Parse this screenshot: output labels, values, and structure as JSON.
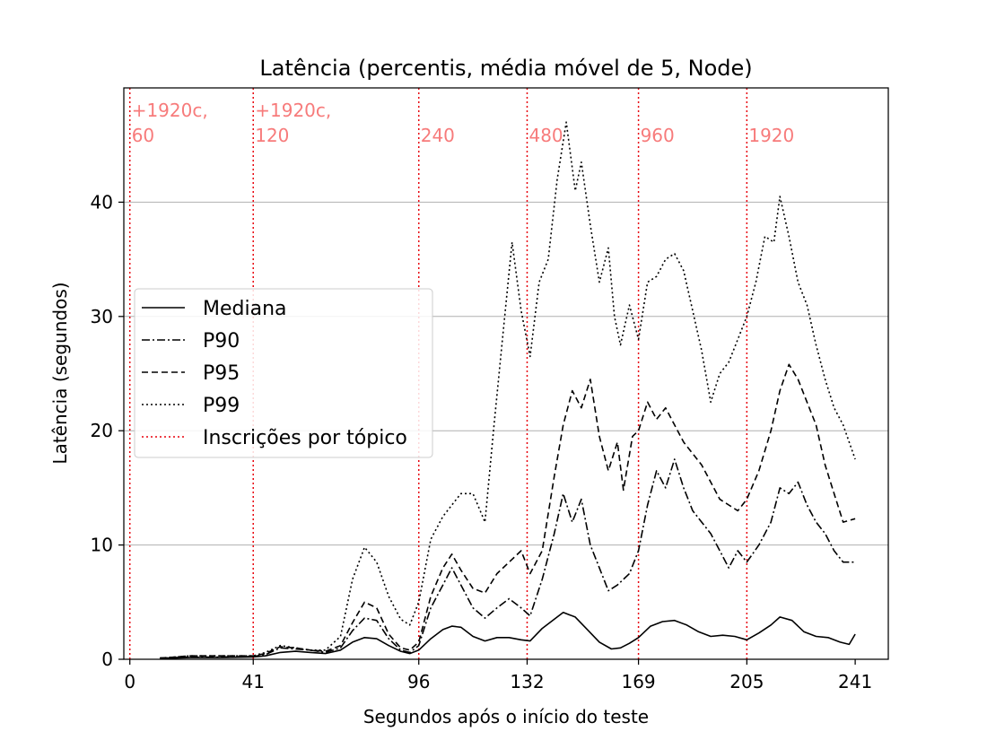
{
  "chart_data": {
    "type": "line",
    "title": "Latência (percentis, média móvel de 5, Node)",
    "xlabel": "Segundos após o início do teste",
    "ylabel": "Latência (segundos)",
    "xlim": [
      -2,
      252
    ],
    "ylim": [
      0,
      50
    ],
    "xticks": [
      0,
      41,
      96,
      132,
      169,
      205,
      241
    ],
    "yticks": [
      0,
      10,
      20,
      30,
      40
    ],
    "grid": "y",
    "legend_position": "center-left",
    "colors": {
      "series": "#000000",
      "markers": "#e8000b",
      "annotations": "#f77b7b",
      "grid": "#b0b0b0"
    },
    "legend": [
      "Mediana",
      "P90",
      "P95",
      "P99",
      "Inscrições por tópico"
    ],
    "markers": [
      {
        "x": 0,
        "label": "+1920c,\n60"
      },
      {
        "x": 41,
        "label": "+1920c,\n120"
      },
      {
        "x": 96,
        "label": "240"
      },
      {
        "x": 132,
        "label": "480"
      },
      {
        "x": 169,
        "label": "960"
      },
      {
        "x": 205,
        "label": "1920"
      }
    ],
    "series": [
      {
        "name": "Mediana",
        "dash": "solid",
        "points": [
          [
            10,
            0.1
          ],
          [
            15,
            0.1
          ],
          [
            20,
            0.15
          ],
          [
            30,
            0.15
          ],
          [
            41,
            0.2
          ],
          [
            45,
            0.3
          ],
          [
            50,
            0.6
          ],
          [
            55,
            0.7
          ],
          [
            60,
            0.6
          ],
          [
            65,
            0.5
          ],
          [
            70,
            0.8
          ],
          [
            74,
            1.5
          ],
          [
            78,
            1.9
          ],
          [
            82,
            1.8
          ],
          [
            86,
            1.2
          ],
          [
            90,
            0.7
          ],
          [
            93,
            0.5
          ],
          [
            96,
            0.8
          ],
          [
            100,
            1.8
          ],
          [
            104,
            2.6
          ],
          [
            107,
            2.9
          ],
          [
            110,
            2.8
          ],
          [
            114,
            2.0
          ],
          [
            118,
            1.6
          ],
          [
            122,
            1.9
          ],
          [
            126,
            1.9
          ],
          [
            130,
            1.7
          ],
          [
            133,
            1.6
          ],
          [
            137,
            2.7
          ],
          [
            141,
            3.5
          ],
          [
            144,
            4.1
          ],
          [
            148,
            3.7
          ],
          [
            152,
            2.6
          ],
          [
            156,
            1.5
          ],
          [
            160,
            0.9
          ],
          [
            163,
            1.0
          ],
          [
            166,
            1.4
          ],
          [
            169,
            1.9
          ],
          [
            173,
            2.9
          ],
          [
            177,
            3.3
          ],
          [
            181,
            3.4
          ],
          [
            185,
            3.0
          ],
          [
            189,
            2.4
          ],
          [
            193,
            2.0
          ],
          [
            197,
            2.1
          ],
          [
            201,
            2.0
          ],
          [
            205,
            1.7
          ],
          [
            209,
            2.3
          ],
          [
            213,
            3.0
          ],
          [
            216,
            3.7
          ],
          [
            220,
            3.4
          ],
          [
            224,
            2.4
          ],
          [
            228,
            2.0
          ],
          [
            232,
            1.9
          ],
          [
            236,
            1.5
          ],
          [
            239,
            1.3
          ],
          [
            241,
            2.2
          ]
        ]
      },
      {
        "name": "P90",
        "dash": "dashdot",
        "points": [
          [
            10,
            0.1
          ],
          [
            15,
            0.15
          ],
          [
            20,
            0.2
          ],
          [
            30,
            0.2
          ],
          [
            41,
            0.25
          ],
          [
            45,
            0.4
          ],
          [
            50,
            1.0
          ],
          [
            55,
            0.9
          ],
          [
            60,
            0.8
          ],
          [
            65,
            0.6
          ],
          [
            70,
            1.0
          ],
          [
            74,
            2.5
          ],
          [
            78,
            3.6
          ],
          [
            82,
            3.4
          ],
          [
            86,
            1.8
          ],
          [
            90,
            0.8
          ],
          [
            93,
            0.6
          ],
          [
            96,
            1.2
          ],
          [
            100,
            4.5
          ],
          [
            104,
            6.5
          ],
          [
            107,
            8.0
          ],
          [
            110,
            6.5
          ],
          [
            114,
            4.5
          ],
          [
            118,
            3.6
          ],
          [
            122,
            4.5
          ],
          [
            126,
            5.3
          ],
          [
            130,
            4.5
          ],
          [
            133,
            3.8
          ],
          [
            137,
            7.0
          ],
          [
            141,
            11.0
          ],
          [
            144,
            14.5
          ],
          [
            147,
            12.0
          ],
          [
            150,
            14.0
          ],
          [
            153,
            10.0
          ],
          [
            156,
            8.0
          ],
          [
            159,
            6.0
          ],
          [
            162,
            6.5
          ],
          [
            166,
            7.5
          ],
          [
            169,
            9.5
          ],
          [
            172,
            13.5
          ],
          [
            175,
            16.5
          ],
          [
            178,
            15.0
          ],
          [
            181,
            17.5
          ],
          [
            184,
            15.0
          ],
          [
            187,
            13.0
          ],
          [
            190,
            12.0
          ],
          [
            193,
            11.0
          ],
          [
            196,
            9.5
          ],
          [
            199,
            8.0
          ],
          [
            202,
            9.5
          ],
          [
            205,
            8.5
          ],
          [
            209,
            10.0
          ],
          [
            213,
            12.0
          ],
          [
            216,
            15.0
          ],
          [
            219,
            14.5
          ],
          [
            222,
            15.5
          ],
          [
            225,
            13.5
          ],
          [
            228,
            12.0
          ],
          [
            231,
            11.0
          ],
          [
            234,
            9.5
          ],
          [
            237,
            8.5
          ],
          [
            241,
            8.5
          ]
        ]
      },
      {
        "name": "P95",
        "dash": "dashed",
        "points": [
          [
            10,
            0.1
          ],
          [
            15,
            0.2
          ],
          [
            20,
            0.3
          ],
          [
            30,
            0.3
          ],
          [
            41,
            0.3
          ],
          [
            45,
            0.5
          ],
          [
            50,
            1.1
          ],
          [
            55,
            1.0
          ],
          [
            60,
            0.8
          ],
          [
            65,
            0.7
          ],
          [
            70,
            1.2
          ],
          [
            74,
            3.2
          ],
          [
            78,
            5.0
          ],
          [
            82,
            4.5
          ],
          [
            86,
            2.2
          ],
          [
            90,
            1.0
          ],
          [
            93,
            0.8
          ],
          [
            96,
            1.5
          ],
          [
            100,
            5.5
          ],
          [
            104,
            8.0
          ],
          [
            107,
            9.2
          ],
          [
            110,
            7.8
          ],
          [
            114,
            6.2
          ],
          [
            118,
            5.8
          ],
          [
            122,
            7.5
          ],
          [
            126,
            8.5
          ],
          [
            130,
            9.5
          ],
          [
            133,
            7.5
          ],
          [
            137,
            9.5
          ],
          [
            141,
            16.0
          ],
          [
            144,
            20.5
          ],
          [
            147,
            23.5
          ],
          [
            150,
            22.0
          ],
          [
            153,
            24.5
          ],
          [
            156,
            19.5
          ],
          [
            159,
            16.5
          ],
          [
            162,
            19.0
          ],
          [
            164,
            14.8
          ],
          [
            167,
            19.5
          ],
          [
            169,
            20.0
          ],
          [
            172,
            22.5
          ],
          [
            175,
            21.0
          ],
          [
            178,
            22.0
          ],
          [
            181,
            20.5
          ],
          [
            184,
            19.0
          ],
          [
            187,
            18.0
          ],
          [
            190,
            17.0
          ],
          [
            193,
            15.5
          ],
          [
            196,
            14.0
          ],
          [
            199,
            13.5
          ],
          [
            202,
            13.0
          ],
          [
            205,
            14.0
          ],
          [
            209,
            16.5
          ],
          [
            213,
            20.0
          ],
          [
            216,
            23.5
          ],
          [
            219,
            25.8
          ],
          [
            222,
            24.5
          ],
          [
            225,
            22.5
          ],
          [
            228,
            20.5
          ],
          [
            231,
            17.0
          ],
          [
            234,
            14.5
          ],
          [
            237,
            12.0
          ],
          [
            241,
            12.3
          ]
        ]
      },
      {
        "name": "P99",
        "dash": "dotted",
        "points": [
          [
            10,
            0.1
          ],
          [
            15,
            0.2
          ],
          [
            20,
            0.3
          ],
          [
            30,
            0.3
          ],
          [
            41,
            0.3
          ],
          [
            45,
            0.6
          ],
          [
            50,
            1.2
          ],
          [
            55,
            1.0
          ],
          [
            60,
            0.8
          ],
          [
            65,
            0.8
          ],
          [
            70,
            2.0
          ],
          [
            74,
            7.0
          ],
          [
            78,
            9.8
          ],
          [
            82,
            8.5
          ],
          [
            86,
            5.5
          ],
          [
            90,
            3.5
          ],
          [
            93,
            3.0
          ],
          [
            96,
            5.0
          ],
          [
            100,
            10.5
          ],
          [
            104,
            12.5
          ],
          [
            107,
            13.5
          ],
          [
            110,
            14.5
          ],
          [
            114,
            14.5
          ],
          [
            118,
            12.0
          ],
          [
            121,
            20.5
          ],
          [
            124,
            28.5
          ],
          [
            127,
            36.5
          ],
          [
            130,
            30.5
          ],
          [
            133,
            26.5
          ],
          [
            136,
            33.0
          ],
          [
            139,
            35.0
          ],
          [
            142,
            42.0
          ],
          [
            145,
            47.0
          ],
          [
            148,
            41.0
          ],
          [
            150,
            43.5
          ],
          [
            153,
            38.0
          ],
          [
            156,
            33.0
          ],
          [
            159,
            36.0
          ],
          [
            161,
            30.0
          ],
          [
            163,
            27.5
          ],
          [
            166,
            31.0
          ],
          [
            169,
            28.0
          ],
          [
            172,
            33.0
          ],
          [
            175,
            33.5
          ],
          [
            178,
            35.0
          ],
          [
            181,
            35.5
          ],
          [
            184,
            34.0
          ],
          [
            187,
            30.5
          ],
          [
            190,
            27.0
          ],
          [
            193,
            22.5
          ],
          [
            196,
            25.0
          ],
          [
            199,
            26.0
          ],
          [
            202,
            28.0
          ],
          [
            205,
            30.0
          ],
          [
            208,
            33.0
          ],
          [
            211,
            37.0
          ],
          [
            214,
            36.5
          ],
          [
            216,
            40.5
          ],
          [
            219,
            37.0
          ],
          [
            222,
            33.0
          ],
          [
            225,
            31.0
          ],
          [
            228,
            27.5
          ],
          [
            231,
            24.5
          ],
          [
            234,
            22.0
          ],
          [
            237,
            20.5
          ],
          [
            241,
            17.5
          ]
        ]
      }
    ]
  }
}
